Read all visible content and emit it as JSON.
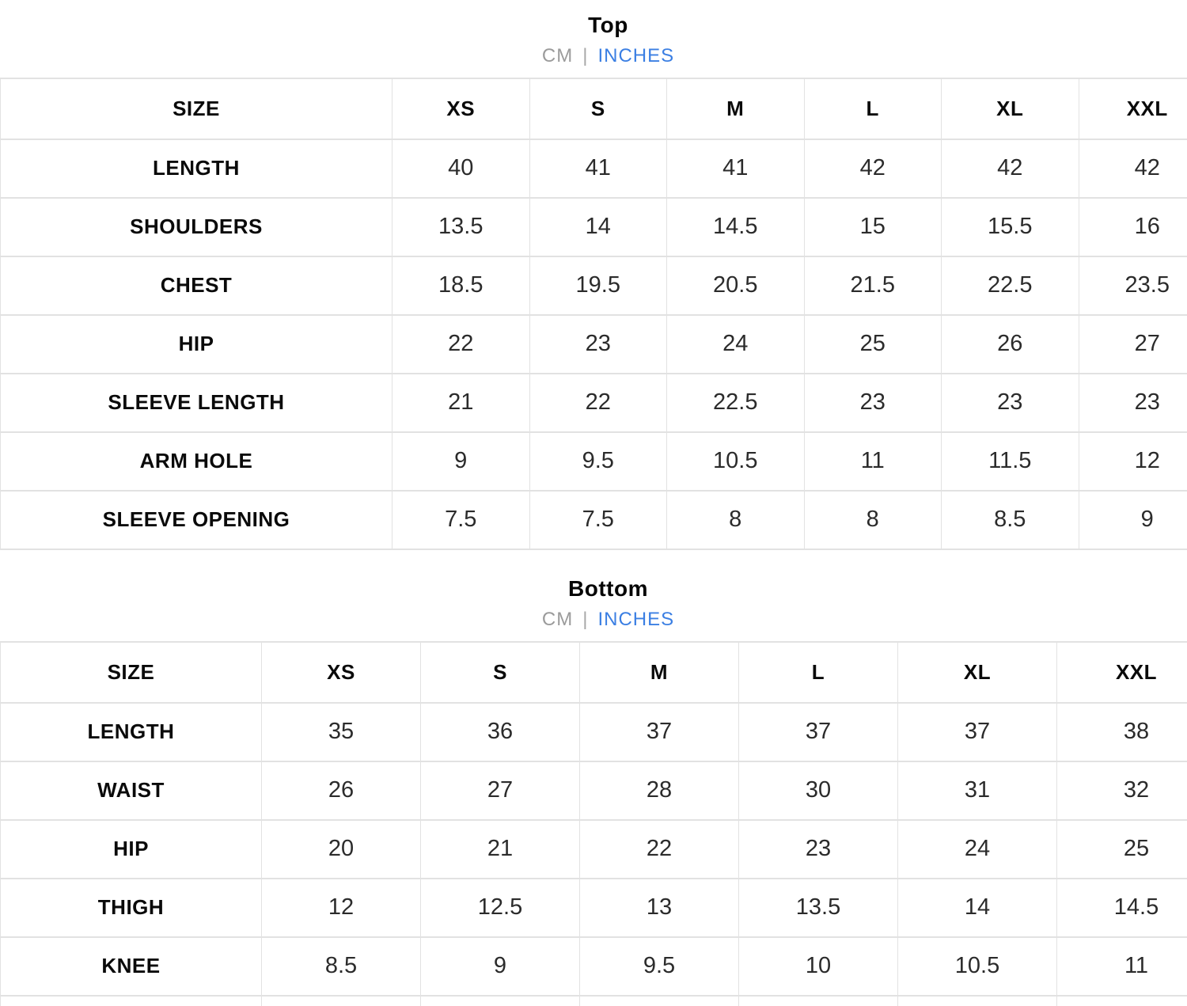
{
  "colors": {
    "accent_blue": "#3b7fe3",
    "muted_gray": "#9b9b9b",
    "grid_line": "#e2e2e2",
    "text_black": "#0a0a0a"
  },
  "sections": [
    {
      "title": "Top",
      "units": {
        "cm": "CM",
        "separator": "|",
        "inches": "INCHES",
        "selected": "INCHES"
      },
      "table": {
        "header": [
          "SIZE",
          "XS",
          "S",
          "M",
          "L",
          "XL",
          "XXL"
        ],
        "rows": [
          {
            "label": "LENGTH",
            "values": [
              "40",
              "41",
              "41",
              "42",
              "42",
              "42"
            ]
          },
          {
            "label": "SHOULDERS",
            "values": [
              "13.5",
              "14",
              "14.5",
              "15",
              "15.5",
              "16"
            ]
          },
          {
            "label": "CHEST",
            "values": [
              "18.5",
              "19.5",
              "20.5",
              "21.5",
              "22.5",
              "23.5"
            ]
          },
          {
            "label": "HIP",
            "values": [
              "22",
              "23",
              "24",
              "25",
              "26",
              "27"
            ]
          },
          {
            "label": "SLEEVE LENGTH",
            "values": [
              "21",
              "22",
              "22.5",
              "23",
              "23",
              "23"
            ]
          },
          {
            "label": "ARM HOLE",
            "values": [
              "9",
              "9.5",
              "10.5",
              "11",
              "11.5",
              "12"
            ]
          },
          {
            "label": "SLEEVE OPENING",
            "values": [
              "7.5",
              "7.5",
              "8",
              "8",
              "8.5",
              "9"
            ]
          }
        ],
        "partial_row_visible": false
      }
    },
    {
      "title": "Bottom",
      "units": {
        "cm": "CM",
        "separator": "|",
        "inches": "INCHES",
        "selected": "INCHES"
      },
      "table": {
        "header": [
          "SIZE",
          "XS",
          "S",
          "M",
          "L",
          "XL",
          "XXL"
        ],
        "rows": [
          {
            "label": "LENGTH",
            "values": [
              "35",
              "36",
              "37",
              "37",
              "37",
              "38"
            ]
          },
          {
            "label": "WAIST",
            "values": [
              "26",
              "27",
              "28",
              "30",
              "31",
              "32"
            ]
          },
          {
            "label": "HIP",
            "values": [
              "20",
              "21",
              "22",
              "23",
              "24",
              "25"
            ]
          },
          {
            "label": "THIGH",
            "values": [
              "12",
              "12.5",
              "13",
              "13.5",
              "14",
              "14.5"
            ]
          },
          {
            "label": "KNEE",
            "values": [
              "8.5",
              "9",
              "9.5",
              "10",
              "10.5",
              "11"
            ]
          }
        ],
        "partial_row_visible": true
      }
    }
  ]
}
